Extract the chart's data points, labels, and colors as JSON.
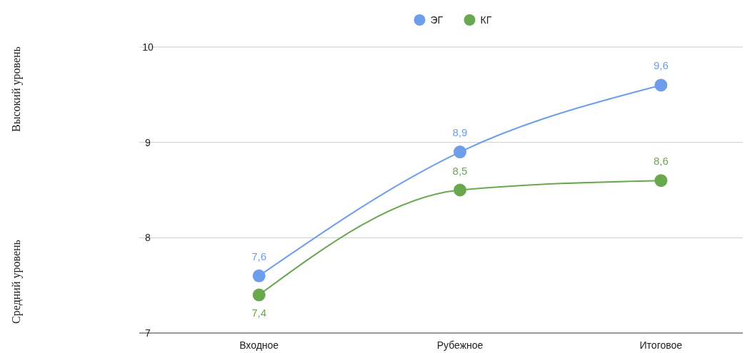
{
  "chart_data": {
    "type": "line",
    "categories": [
      "Входное",
      "Рубежное",
      "Итоговое"
    ],
    "series": [
      {
        "name": "ЭГ",
        "color": "#6d9eeb",
        "values": [
          7.6,
          8.9,
          9.6
        ],
        "value_labels": [
          "7,6",
          "8,9",
          "9,6"
        ]
      },
      {
        "name": "КГ",
        "color": "#6aa84f",
        "values": [
          7.4,
          8.5,
          8.6
        ],
        "value_labels": [
          "7,4",
          "8,5",
          "8,6"
        ]
      }
    ],
    "ylim": [
      7,
      10
    ],
    "yticks": [
      7,
      8,
      9,
      10
    ],
    "grid": "y",
    "legend": "top",
    "marker": "circle",
    "line_style": "solid",
    "annotations": [
      "Высокий уровень",
      "Средний уровень"
    ]
  }
}
